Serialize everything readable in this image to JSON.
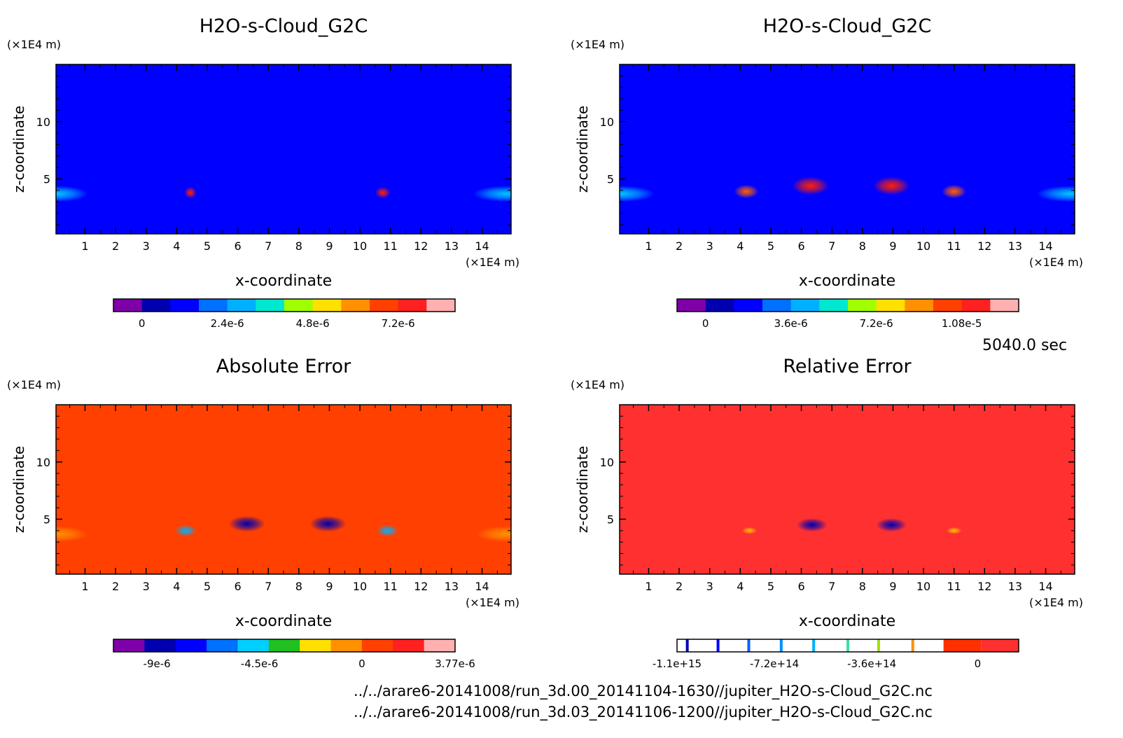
{
  "chart_data": [
    {
      "type": "heatmap",
      "title": "H2O-s-Cloud_G2C",
      "xlabel": "x-coordinate",
      "ylabel": "z-coordinate",
      "x_unit": "(×1E4 m)",
      "y_unit": "(×1E4 m)",
      "x_ticks": [
        "1",
        "2",
        "3",
        "4",
        "5",
        "6",
        "7",
        "8",
        "9",
        "10",
        "11",
        "12",
        "13",
        "14"
      ],
      "y_ticks": [
        "5",
        "10"
      ],
      "xlim": [
        0.05,
        14.95
      ],
      "ylim": [
        0.2,
        15.0
      ],
      "background_color": "#0000ff",
      "features": [
        {
          "x": 0.1,
          "z": 3.7,
          "rx": 1.0,
          "rz": 0.7,
          "peak": "#00c8ff"
        },
        {
          "x": 4.45,
          "z": 3.8,
          "rx": 0.2,
          "rz": 0.5,
          "peak": "#ff2000"
        },
        {
          "x": 10.75,
          "z": 3.8,
          "rx": 0.25,
          "rz": 0.5,
          "peak": "#ff2000"
        },
        {
          "x": 14.8,
          "z": 3.7,
          "rx": 1.1,
          "rz": 0.7,
          "peak": "#00c8ff"
        }
      ],
      "colorbar": {
        "colors": [
          "#7f00a8",
          "#0000b0",
          "#0000ff",
          "#0070ff",
          "#00b0ff",
          "#00e8d0",
          "#a0ff00",
          "#ffe000",
          "#ff9000",
          "#ff4000",
          "#ff2020",
          "#ffb0b0"
        ],
        "labels": [
          "0",
          "2.4e-6",
          "4.8e-6",
          "7.2e-6"
        ],
        "label_positions": [
          1,
          4,
          7,
          10
        ]
      }
    },
    {
      "type": "heatmap",
      "title": "H2O-s-Cloud_G2C",
      "xlabel": "x-coordinate",
      "ylabel": "z-coordinate",
      "x_unit": "(×1E4 m)",
      "y_unit": "(×1E4 m)",
      "x_ticks": [
        "1",
        "2",
        "3",
        "4",
        "5",
        "6",
        "7",
        "8",
        "9",
        "10",
        "11",
        "12",
        "13",
        "14"
      ],
      "y_ticks": [
        "5",
        "10"
      ],
      "xlim": [
        0.05,
        14.95
      ],
      "ylim": [
        0.2,
        15.0
      ],
      "background_color": "#0000ff",
      "features": [
        {
          "x": 0.1,
          "z": 3.7,
          "rx": 1.1,
          "rz": 0.7,
          "peak": "#00c8ff"
        },
        {
          "x": 4.2,
          "z": 3.9,
          "rx": 0.4,
          "rz": 0.6,
          "peak": "#ff6000"
        },
        {
          "x": 6.3,
          "z": 4.4,
          "rx": 0.6,
          "rz": 0.8,
          "peak": "#ff2000"
        },
        {
          "x": 8.95,
          "z": 4.4,
          "rx": 0.6,
          "rz": 0.8,
          "peak": "#ff2000"
        },
        {
          "x": 11.0,
          "z": 3.9,
          "rx": 0.4,
          "rz": 0.6,
          "peak": "#ff6000"
        },
        {
          "x": 14.8,
          "z": 3.7,
          "rx": 1.1,
          "rz": 0.7,
          "peak": "#00c8ff"
        }
      ],
      "colorbar": {
        "colors": [
          "#7f00a8",
          "#0000b0",
          "#0000ff",
          "#0070ff",
          "#00b0ff",
          "#00e8d0",
          "#a0ff00",
          "#ffe000",
          "#ff9000",
          "#ff4000",
          "#ff2020",
          "#ffb0b0"
        ],
        "labels": [
          "0",
          "3.6e-6",
          "7.2e-6",
          "1.08e-5"
        ],
        "label_positions": [
          1,
          4,
          7,
          10
        ]
      }
    },
    {
      "type": "heatmap",
      "title": "Absolute Error",
      "xlabel": "x-coordinate",
      "ylabel": "z-coordinate",
      "x_unit": "(×1E4 m)",
      "y_unit": "(×1E4 m)",
      "x_ticks": [
        "1",
        "2",
        "3",
        "4",
        "5",
        "6",
        "7",
        "8",
        "9",
        "10",
        "11",
        "12",
        "13",
        "14"
      ],
      "y_ticks": [
        "5",
        "10"
      ],
      "xlim": [
        0.05,
        14.95
      ],
      "ylim": [
        0.2,
        15.0
      ],
      "background_color": "#ff4000",
      "features": [
        {
          "x": 0.1,
          "z": 3.7,
          "rx": 1.0,
          "rz": 0.7,
          "peak": "#ff9000"
        },
        {
          "x": 4.3,
          "z": 4.0,
          "rx": 0.35,
          "rz": 0.5,
          "peak": "#00b0ff"
        },
        {
          "x": 6.3,
          "z": 4.6,
          "rx": 0.6,
          "rz": 0.7,
          "peak": "#0000b0"
        },
        {
          "x": 8.95,
          "z": 4.6,
          "rx": 0.6,
          "rz": 0.7,
          "peak": "#0000b0"
        },
        {
          "x": 10.9,
          "z": 4.0,
          "rx": 0.35,
          "rz": 0.5,
          "peak": "#00b0ff"
        },
        {
          "x": 14.8,
          "z": 3.7,
          "rx": 1.0,
          "rz": 0.7,
          "peak": "#ff9000"
        }
      ],
      "colorbar": {
        "colors": [
          "#7f00a8",
          "#0000b0",
          "#0000ff",
          "#0070ff",
          "#00d0ff",
          "#20c020",
          "#ffe000",
          "#ff9000",
          "#ff4000",
          "#ff2020",
          "#ffb0b0"
        ],
        "labels": [
          "-9e-6",
          "-4.5e-6",
          "0",
          "3.77e-6"
        ],
        "label_positions": [
          1.4,
          4.7,
          8,
          11
        ]
      }
    },
    {
      "type": "heatmap",
      "title": "Relative Error",
      "xlabel": "x-coordinate",
      "ylabel": "z-coordinate",
      "x_unit": "(×1E4 m)",
      "y_unit": "(×1E4 m)",
      "x_ticks": [
        "1",
        "2",
        "3",
        "4",
        "5",
        "6",
        "7",
        "8",
        "9",
        "10",
        "11",
        "12",
        "13",
        "14"
      ],
      "y_ticks": [
        "5",
        "10"
      ],
      "xlim": [
        0.05,
        14.95
      ],
      "ylim": [
        0.2,
        15.0
      ],
      "background_color": "#ff3030",
      "features": [
        {
          "x": 4.3,
          "z": 4.0,
          "rx": 0.25,
          "rz": 0.3,
          "peak": "#ffc000"
        },
        {
          "x": 6.35,
          "z": 4.5,
          "rx": 0.5,
          "rz": 0.6,
          "peak": "#0000b0"
        },
        {
          "x": 8.95,
          "z": 4.5,
          "rx": 0.5,
          "rz": 0.6,
          "peak": "#0000b0"
        },
        {
          "x": 11.0,
          "z": 4.0,
          "rx": 0.25,
          "rz": 0.3,
          "peak": "#ffc000"
        }
      ],
      "colorbar": {
        "type": "discrete-lines",
        "lines": [
          {
            "pos": 0.03,
            "color": "#0000b0"
          },
          {
            "pos": 0.12,
            "color": "#0000ff"
          },
          {
            "pos": 0.21,
            "color": "#0060ff"
          },
          {
            "pos": 0.305,
            "color": "#0090ff"
          },
          {
            "pos": 0.4,
            "color": "#00b0ff"
          },
          {
            "pos": 0.5,
            "color": "#40e0a0"
          },
          {
            "pos": 0.59,
            "color": "#a0e000"
          },
          {
            "pos": 0.69,
            "color": "#ff9000"
          }
        ],
        "fill_start": 0.78,
        "fill_colors": [
          "#ff3000",
          "#ff3030"
        ],
        "labels": [
          "-1.1e+15",
          "-7.2e+14",
          "-3.6e+14",
          "0"
        ],
        "label_positions": [
          0,
          0.285,
          0.57,
          0.88
        ]
      }
    }
  ],
  "time_label": "5040.0 sec",
  "footer": {
    "line1": "../../arare6-20141008/run_3d.00_20141104-1630//jupiter_H2O-s-Cloud_G2C.nc",
    "line2": "../../arare6-20141008/run_3d.03_20141106-1200//jupiter_H2O-s-Cloud_G2C.nc"
  }
}
